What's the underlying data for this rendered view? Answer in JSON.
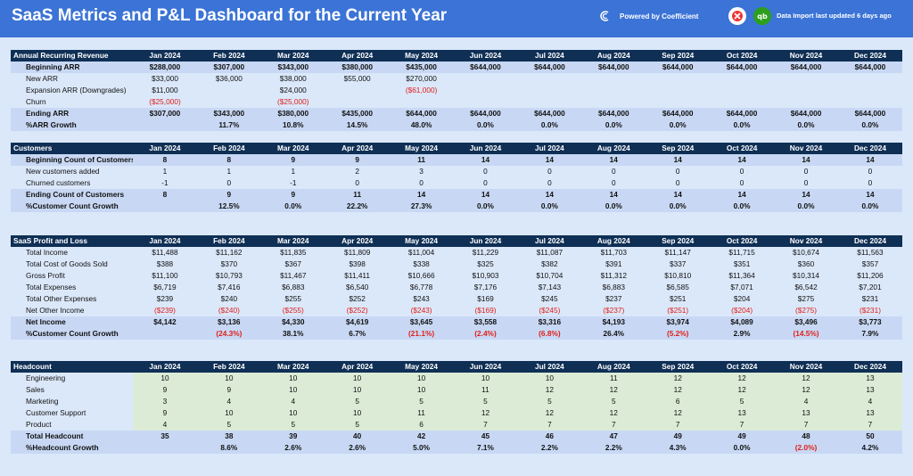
{
  "header": {
    "title": "SaaS Metrics and P&L Dashboard for the Current Year",
    "powered_by": "Powered by Coefficient",
    "import_status": "Data Import last updated 6 days ago"
  },
  "months": [
    "Jan 2024",
    "Feb 2024",
    "Mar 2024",
    "Apr 2024",
    "May 2024",
    "Jun 2024",
    "Jul 2024",
    "Aug 2024",
    "Sep 2024",
    "Oct 2024",
    "Nov 2024",
    "Dec 2024"
  ],
  "arr": {
    "title": "Annual Recurring Revenue",
    "rows": [
      {
        "label": "Beginning ARR",
        "style": "bold band",
        "values": [
          "$288,000",
          "$307,000",
          "$343,000",
          "$380,000",
          "$435,000",
          "$644,000",
          "$644,000",
          "$644,000",
          "$644,000",
          "$644,000",
          "$644,000",
          "$644,000"
        ]
      },
      {
        "label": "New ARR",
        "style": "",
        "values": [
          "$33,000",
          "$36,000",
          "$38,000",
          "$55,000",
          "$270,000",
          "",
          "",
          "",
          "",
          "",
          "",
          ""
        ]
      },
      {
        "label": "Expansion ARR (Downgrades)",
        "style": "",
        "values": [
          "$11,000",
          "",
          "$24,000",
          "",
          "($61,000)",
          "",
          "",
          "",
          "",
          "",
          "",
          ""
        ]
      },
      {
        "label": "Churn",
        "style": "",
        "values": [
          "($25,000)",
          "",
          "($25,000)",
          "",
          "",
          "",
          "",
          "",
          "",
          "",
          "",
          ""
        ]
      },
      {
        "label": "Ending ARR",
        "style": "bold band",
        "values": [
          "$307,000",
          "$343,000",
          "$380,000",
          "$435,000",
          "$644,000",
          "$644,000",
          "$644,000",
          "$644,000",
          "$644,000",
          "$644,000",
          "$644,000",
          "$644,000"
        ]
      },
      {
        "label": "%ARR Growth",
        "style": "bold band",
        "values": [
          "",
          "11.7%",
          "10.8%",
          "14.5%",
          "48.0%",
          "0.0%",
          "0.0%",
          "0.0%",
          "0.0%",
          "0.0%",
          "0.0%",
          "0.0%"
        ]
      }
    ]
  },
  "customers": {
    "title": "Customers",
    "rows": [
      {
        "label": "Beginning Count of Customers",
        "style": "bold band",
        "values": [
          "8",
          "8",
          "9",
          "9",
          "11",
          "14",
          "14",
          "14",
          "14",
          "14",
          "14",
          "14"
        ]
      },
      {
        "label": "New customers added",
        "style": "",
        "values": [
          "1",
          "1",
          "1",
          "2",
          "3",
          "0",
          "0",
          "0",
          "0",
          "0",
          "0",
          "0"
        ]
      },
      {
        "label": "Churned customers",
        "style": "",
        "values": [
          "-1",
          "0",
          "-1",
          "0",
          "0",
          "0",
          "0",
          "0",
          "0",
          "0",
          "0",
          "0"
        ]
      },
      {
        "label": "Ending Count of Customers",
        "style": "bold band",
        "values": [
          "8",
          "9",
          "9",
          "11",
          "14",
          "14",
          "14",
          "14",
          "14",
          "14",
          "14",
          "14"
        ]
      },
      {
        "label": "%Customer Count Growth",
        "style": "bold band",
        "values": [
          "",
          "12.5%",
          "0.0%",
          "22.2%",
          "27.3%",
          "0.0%",
          "0.0%",
          "0.0%",
          "0.0%",
          "0.0%",
          "0.0%",
          "0.0%"
        ]
      }
    ]
  },
  "pnl": {
    "title": "SaaS Profit and Loss",
    "rows": [
      {
        "label": "Total Income",
        "style": "",
        "values": [
          "$11,488",
          "$11,162",
          "$11,835",
          "$11,809",
          "$11,004",
          "$11,229",
          "$11,087",
          "$11,703",
          "$11,147",
          "$11,715",
          "$10,674",
          "$11,563"
        ]
      },
      {
        "label": "Total Cost of Goods Sold",
        "style": "",
        "values": [
          "$388",
          "$370",
          "$367",
          "$398",
          "$338",
          "$325",
          "$382",
          "$391",
          "$337",
          "$351",
          "$360",
          "$357"
        ]
      },
      {
        "label": "Gross Profit",
        "style": "",
        "values": [
          "$11,100",
          "$10,793",
          "$11,467",
          "$11,411",
          "$10,666",
          "$10,903",
          "$10,704",
          "$11,312",
          "$10,810",
          "$11,364",
          "$10,314",
          "$11,206"
        ]
      },
      {
        "label": "Total Expenses",
        "style": "",
        "values": [
          "$6,719",
          "$7,416",
          "$6,883",
          "$6,540",
          "$6,778",
          "$7,176",
          "$7,143",
          "$6,883",
          "$6,585",
          "$7,071",
          "$6,542",
          "$7,201"
        ]
      },
      {
        "label": "Total Other Expenses",
        "style": "",
        "values": [
          "$239",
          "$240",
          "$255",
          "$252",
          "$243",
          "$169",
          "$245",
          "$237",
          "$251",
          "$204",
          "$275",
          "$231"
        ]
      },
      {
        "label": "Net Other Income",
        "style": "",
        "values": [
          "($239)",
          "($240)",
          "($255)",
          "($252)",
          "($243)",
          "($169)",
          "($245)",
          "($237)",
          "($251)",
          "($204)",
          "($275)",
          "($231)"
        ]
      },
      {
        "label": "Net Income",
        "style": "bold band",
        "values": [
          "$4,142",
          "$3,136",
          "$4,330",
          "$4,619",
          "$3,645",
          "$3,558",
          "$3,316",
          "$4,193",
          "$3,974",
          "$4,089",
          "$3,496",
          "$3,773"
        ]
      },
      {
        "label": "%Customer Count Growth",
        "style": "bold band",
        "values": [
          "",
          "(24.3%)",
          "38.1%",
          "6.7%",
          "(21.1%)",
          "(2.4%)",
          "(6.8%)",
          "26.4%",
          "(5.2%)",
          "2.9%",
          "(14.5%)",
          "7.9%"
        ]
      }
    ]
  },
  "headcount": {
    "title": "Headcount",
    "rows": [
      {
        "label": "Engineering",
        "style": "green",
        "values": [
          "10",
          "10",
          "10",
          "10",
          "10",
          "10",
          "10",
          "11",
          "12",
          "12",
          "12",
          "13"
        ]
      },
      {
        "label": "Sales",
        "style": "green",
        "values": [
          "9",
          "9",
          "10",
          "10",
          "10",
          "11",
          "12",
          "12",
          "12",
          "12",
          "12",
          "13"
        ]
      },
      {
        "label": "Marketing",
        "style": "green",
        "values": [
          "3",
          "4",
          "4",
          "5",
          "5",
          "5",
          "5",
          "5",
          "6",
          "5",
          "4",
          "4"
        ]
      },
      {
        "label": "Customer Support",
        "style": "green",
        "values": [
          "9",
          "10",
          "10",
          "10",
          "11",
          "12",
          "12",
          "12",
          "12",
          "13",
          "13",
          "13"
        ]
      },
      {
        "label": "Product",
        "style": "green",
        "values": [
          "4",
          "5",
          "5",
          "5",
          "6",
          "7",
          "7",
          "7",
          "7",
          "7",
          "7",
          "7"
        ]
      },
      {
        "label": "Total Headcount",
        "style": "bold band",
        "values": [
          "35",
          "38",
          "39",
          "40",
          "42",
          "45",
          "46",
          "47",
          "49",
          "49",
          "48",
          "50"
        ]
      },
      {
        "label": "%Headcount Growth",
        "style": "bold band",
        "values": [
          "",
          "8.6%",
          "2.6%",
          "2.6%",
          "5.0%",
          "7.1%",
          "2.2%",
          "2.2%",
          "4.3%",
          "0.0%",
          "(2.0%)",
          "4.2%"
        ]
      }
    ]
  },
  "colors": {
    "header_bar": "#3b73d6",
    "table_header": "#0f2f55",
    "band": "#c8d8f4",
    "green": "#dcebd6",
    "negative": "#e0201a"
  }
}
